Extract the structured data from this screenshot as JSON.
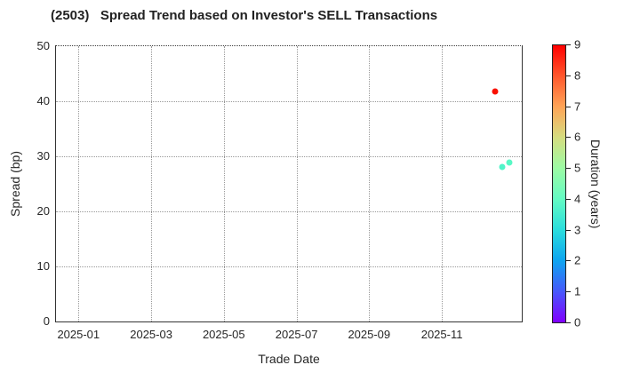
{
  "chart_data": {
    "type": "scatter",
    "title": "(2503)   Spread Trend based on Investor's SELL Transactions",
    "xlabel": "Trade Date",
    "ylabel": "Spread (bp)",
    "grid": true,
    "x_axis": {
      "range_months": [
        -0.62,
        12.2
      ],
      "ticks": [
        {
          "label": "2025-01",
          "months": 0
        },
        {
          "label": "2025-03",
          "months": 2
        },
        {
          "label": "2025-05",
          "months": 4
        },
        {
          "label": "2025-07",
          "months": 6
        },
        {
          "label": "2025-09",
          "months": 8
        },
        {
          "label": "2025-11",
          "months": 10
        }
      ]
    },
    "y_axis": {
      "range": [
        0,
        50
      ],
      "ticks": [
        0,
        10,
        20,
        30,
        40,
        50
      ]
    },
    "points": [
      {
        "date": "2025-12-15",
        "spread": 41.8,
        "duration": 9.0,
        "color": "#f91000"
      },
      {
        "date": "2025-12-21",
        "spread": 28.0,
        "duration": 3.9,
        "color": "#50f4c8"
      },
      {
        "date": "2025-12-27",
        "spread": 28.8,
        "duration": 4.0,
        "color": "#58f8c5"
      }
    ],
    "colorbar": {
      "label": "Duration (years)",
      "min": 0,
      "max": 9,
      "ticks": [
        0,
        1,
        2,
        3,
        4,
        5,
        6,
        7,
        8,
        9
      ],
      "stops": [
        {
          "value": 0,
          "color": "#8000ff"
        },
        {
          "value": 1,
          "color": "#4757fb"
        },
        {
          "value": 2,
          "color": "#0ea4f0"
        },
        {
          "value": 3,
          "color": "#2adddd"
        },
        {
          "value": 4,
          "color": "#63fbc3"
        },
        {
          "value": 5,
          "color": "#9cfba4"
        },
        {
          "value": 6,
          "color": "#d5dd80"
        },
        {
          "value": 7,
          "color": "#ffa457"
        },
        {
          "value": 8,
          "color": "#ff572c"
        },
        {
          "value": 9,
          "color": "#ff0000"
        }
      ]
    },
    "style": {
      "grid_color": "#999999",
      "spine_color": "#333333",
      "text_color": "#262626",
      "background": "#ffffff"
    }
  }
}
